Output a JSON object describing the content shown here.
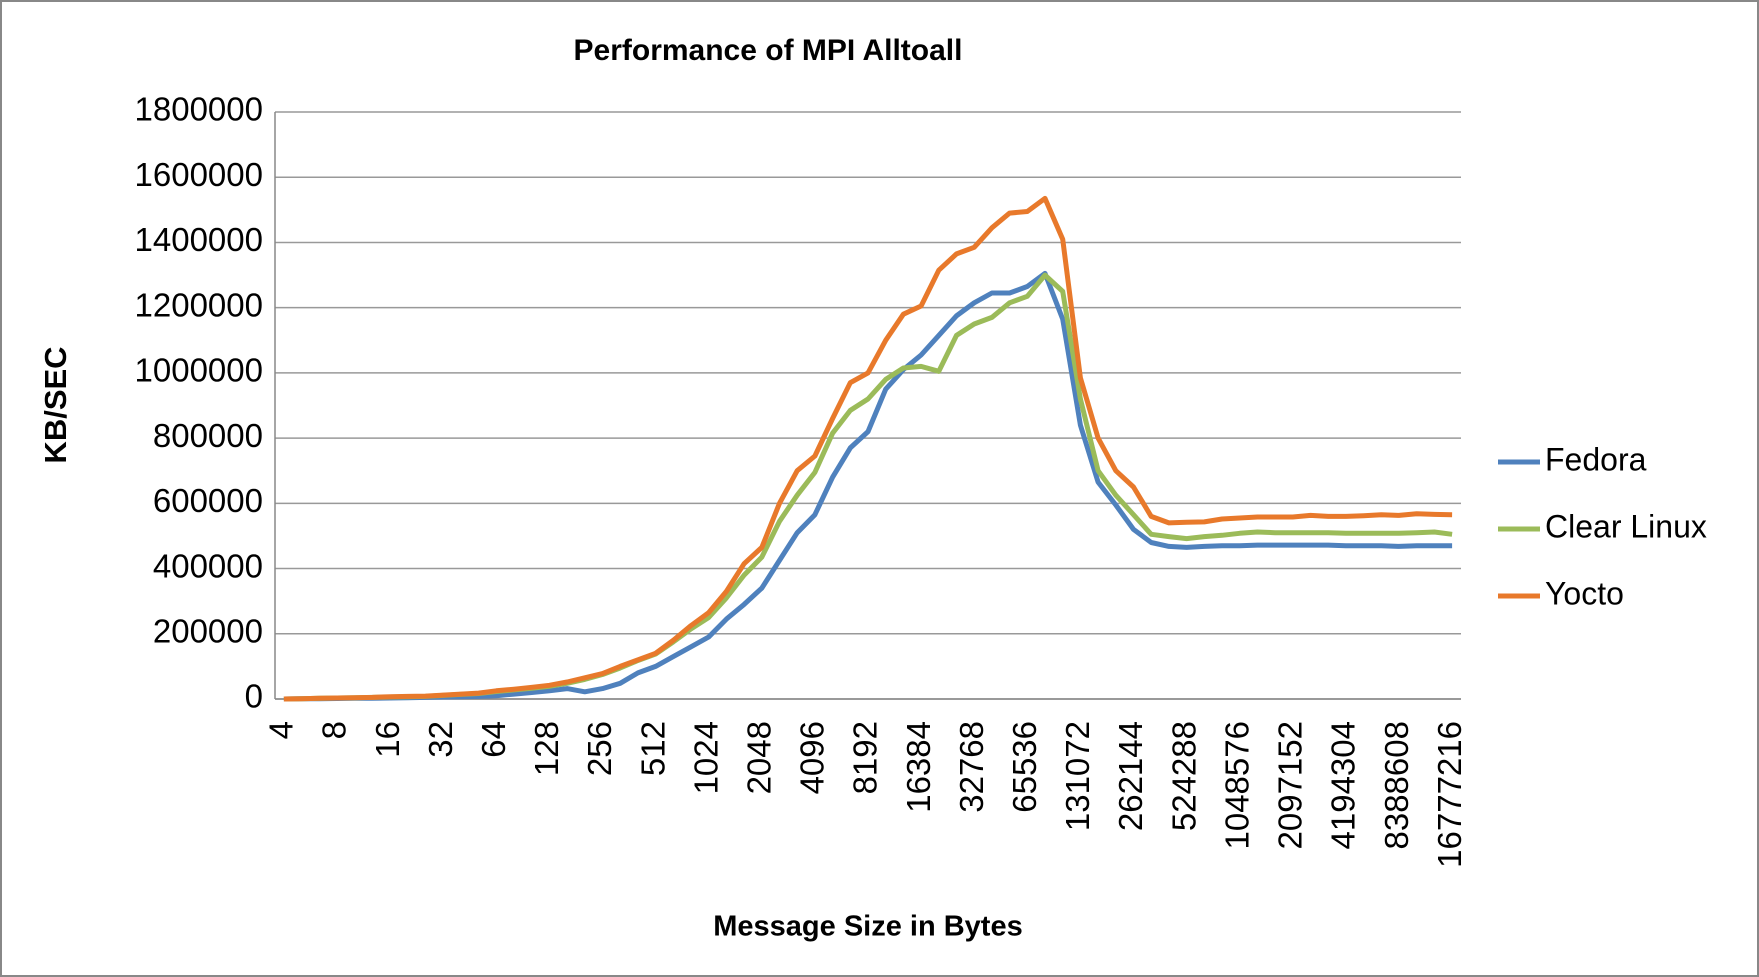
{
  "chart_data": {
    "type": "line",
    "title": "Performance of MPI Alltoall",
    "x_label": "Message Size in Bytes",
    "y_label": "KB/SEC",
    "categories": [
      "4",
      null,
      null,
      "8",
      null,
      null,
      "16",
      null,
      null,
      "32",
      null,
      null,
      "64",
      null,
      null,
      "128",
      null,
      null,
      "256",
      null,
      null,
      "512",
      null,
      null,
      "1024",
      null,
      null,
      "2048",
      null,
      null,
      "4096",
      null,
      null,
      "8192",
      null,
      null,
      "16384",
      null,
      null,
      "32768",
      null,
      null,
      "65536",
      null,
      null,
      "131072",
      null,
      null,
      "262144",
      null,
      null,
      "524288",
      null,
      null,
      "1048576",
      null,
      null,
      "2097152",
      null,
      null,
      "4194304",
      null,
      null,
      "8388608",
      null,
      null,
      "16777216"
    ],
    "series": [
      {
        "name": "Fedora",
        "color": "#4f81bd",
        "values": [
          0,
          500,
          1000,
          1500,
          2000,
          2500,
          3000,
          4000,
          5000,
          6000,
          7000,
          8000,
          10000,
          15000,
          20000,
          25000,
          32000,
          22000,
          32000,
          48000,
          80000,
          100000,
          130000,
          160000,
          190000,
          245000,
          290000,
          340000,
          425000,
          510000,
          565000,
          680000,
          770000,
          820000,
          950000,
          1010000,
          1055000,
          1115000,
          1175000,
          1215000,
          1245000,
          1245000,
          1265000,
          1305000,
          1165000,
          840000,
          665000,
          595000,
          520000,
          480000,
          468000,
          465000,
          468000,
          470000,
          470000,
          472000,
          472000,
          472000,
          472000,
          472000,
          470000,
          470000,
          470000,
          468000,
          470000,
          470000,
          470000
        ]
      },
      {
        "name": "Clear Linux",
        "color": "#9bbb59",
        "values": [
          0,
          1000,
          2000,
          3000,
          4000,
          5000,
          6000,
          7000,
          8000,
          11000,
          14000,
          17000,
          23000,
          28000,
          33000,
          39000,
          48000,
          60000,
          75000,
          95000,
          118000,
          138000,
          175000,
          215000,
          250000,
          310000,
          380000,
          435000,
          545000,
          625000,
          695000,
          815000,
          885000,
          920000,
          980000,
          1015000,
          1020000,
          1005000,
          1115000,
          1150000,
          1170000,
          1215000,
          1235000,
          1300000,
          1250000,
          920000,
          700000,
          625000,
          565000,
          505000,
          498000,
          492000,
          498000,
          502000,
          508000,
          512000,
          510000,
          510000,
          510000,
          510000,
          508000,
          508000,
          508000,
          508000,
          510000,
          512000,
          505000
        ]
      },
      {
        "name": "Yocto",
        "color": "#e8792b",
        "values": [
          0,
          1000,
          2000,
          3000,
          4000,
          5000,
          7000,
          8000,
          9000,
          12000,
          15000,
          18000,
          25000,
          30000,
          36000,
          42000,
          52000,
          65000,
          78000,
          100000,
          120000,
          140000,
          180000,
          225000,
          265000,
          330000,
          415000,
          465000,
          600000,
          700000,
          745000,
          860000,
          970000,
          1000000,
          1100000,
          1180000,
          1205000,
          1315000,
          1365000,
          1385000,
          1445000,
          1490000,
          1495000,
          1535000,
          1410000,
          985000,
          800000,
          700000,
          650000,
          560000,
          540000,
          542000,
          543000,
          552000,
          555000,
          558000,
          558000,
          558000,
          563000,
          560000,
          560000,
          562000,
          565000,
          563000,
          568000,
          566000,
          565000
        ]
      }
    ],
    "ylim": [
      0,
      1800000
    ],
    "yticks": [
      0,
      200000,
      400000,
      600000,
      800000,
      1000000,
      1200000,
      1400000,
      1600000,
      1800000
    ],
    "grid": true,
    "legend": "right"
  }
}
